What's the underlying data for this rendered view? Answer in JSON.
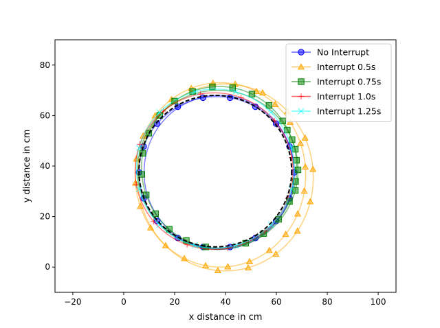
{
  "chart_data": {
    "type": "line",
    "title": "",
    "xlabel": "x distance in cm",
    "ylabel": "y distance in cm",
    "xlim": [
      -27,
      107
    ],
    "ylim": [
      -10,
      90
    ],
    "xticks": [
      -20,
      0,
      20,
      40,
      60,
      80,
      100
    ],
    "yticks": [
      0,
      20,
      40,
      60,
      80
    ],
    "grid": false,
    "legend_position": "top-right",
    "reference": {
      "name": "",
      "style": "dashed",
      "color": "#000000",
      "center": [
        36,
        38
      ],
      "radius": 30
    },
    "series": [
      {
        "name": "No Interrupt",
        "color": "#0000ff",
        "marker": "circle",
        "loops": [
          {
            "center": [
              36.5,
              37.5
            ],
            "rx": 30.5,
            "ry": 30.0,
            "start_deg": 90,
            "sweep_deg": 360,
            "markers_deg": [
              -80,
              -60,
              -40,
              -20,
              0,
              20,
              40,
              60,
              80,
              100,
              120,
              140,
              160,
              180,
              200,
              220,
              240,
              260
            ]
          },
          {
            "center": [
              37.5,
              37.5
            ],
            "rx": 29.5,
            "ry": 30.5,
            "start_deg": 90,
            "sweep_deg": 360,
            "markers_deg": []
          }
        ]
      },
      {
        "name": "Interrupt 0.5s",
        "color": "#ffa500",
        "marker": "triangle",
        "loops": [
          {
            "center": [
              38,
              36.5
            ],
            "rx": 33.5,
            "ry": 36.5,
            "start_deg": 70,
            "sweep_deg": 360,
            "markers_deg": [
              -100,
              -85,
              -70,
              -55,
              -40,
              -25,
              -10,
              5,
              20,
              35,
              50,
              65,
              80,
              95,
              110,
              125,
              140,
              155,
              170,
              185,
              200,
              215,
              230,
              245
            ]
          },
          {
            "center": [
              40,
              35.5
            ],
            "rx": 34.5,
            "ry": 37.0,
            "start_deg": 70,
            "sweep_deg": 360,
            "markers_deg": [
              -95,
              -75,
              -55,
              -35,
              -15,
              5,
              25,
              45,
              65
            ]
          }
        ]
      },
      {
        "name": "Interrupt 0.75s",
        "color": "#008000",
        "marker": "square",
        "loops": [
          {
            "center": [
              37.5,
              39.5
            ],
            "rx": 30.5,
            "ry": 32.0,
            "start_deg": 90,
            "sweep_deg": 360,
            "markers_deg": [
              -70,
              -55,
              -40,
              -25,
              -10,
              5,
              20,
              35,
              50,
              65,
              80,
              95,
              110,
              125,
              140,
              155,
              170,
              185,
              200,
              215,
              230,
              245,
              260
            ]
          },
          {
            "center": [
              37.0,
              38.5
            ],
            "rx": 31.5,
            "ry": 31.5,
            "start_deg": 90,
            "sweep_deg": 360,
            "markers_deg": [
              -15,
              0,
              15,
              30
            ]
          }
        ]
      },
      {
        "name": "Interrupt 1.0s",
        "color": "#ff0000",
        "marker": "plus",
        "loops": [
          {
            "center": [
              35.5,
              38.0
            ],
            "rx": 31.0,
            "ry": 31.0,
            "start_deg": 90,
            "sweep_deg": 360,
            "markers_deg": [
              -80,
              -50,
              -20,
              10,
              40,
              70,
              100,
              130,
              160,
              190,
              220,
              250
            ]
          }
        ]
      },
      {
        "name": "Interrupt 1.25s",
        "color": "#00ffff",
        "marker": "x",
        "loops": [
          {
            "center": [
              36.0,
              39.0
            ],
            "rx": 31.0,
            "ry": 31.5,
            "start_deg": 90,
            "sweep_deg": 360,
            "markers_deg": [
              -75,
              -45,
              -15,
              15,
              45,
              75,
              105,
              135,
              165,
              195,
              225,
              255
            ]
          }
        ]
      }
    ]
  }
}
